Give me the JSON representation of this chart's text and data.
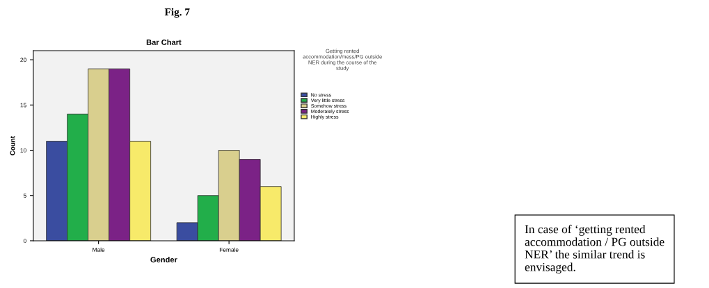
{
  "chart_data": {
    "type": "bar",
    "title": "Fig. 7",
    "subtitle": "Bar Chart",
    "xlabel": "Gender",
    "ylabel": "Count",
    "legend_title": "Getting rented accommodation/mess/PG outside NER during the course of the study",
    "categories": [
      "Male",
      "Female"
    ],
    "series": [
      {
        "name": "No stress",
        "color": "#3a4da0",
        "values": [
          11,
          2
        ]
      },
      {
        "name": "Very little stress",
        "color": "#22ae4a",
        "values": [
          14,
          5
        ]
      },
      {
        "name": "Somehow stress",
        "color": "#d9cf8e",
        "values": [
          19,
          10
        ]
      },
      {
        "name": "Moderately stress",
        "color": "#7b2286",
        "values": [
          19,
          9
        ]
      },
      {
        "name": "Highly stress",
        "color": "#f7ea6a",
        "values": [
          11,
          6
        ]
      }
    ],
    "ylim": [
      0,
      21
    ],
    "yticks": [
      0,
      5,
      10,
      15,
      20
    ],
    "grid": false,
    "legend": "top right",
    "annotations": [
      "In case of ‘getting rented accommodation / PG outside NER’ the similar trend is envisaged."
    ]
  }
}
